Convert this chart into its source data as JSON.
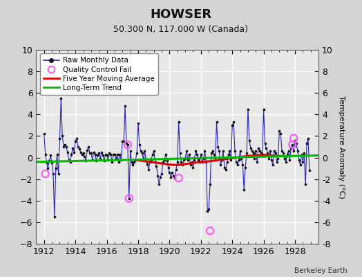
{
  "title": "HOWSER",
  "subtitle": "50.300 N, 117.000 W (Canada)",
  "ylabel": "Temperature Anomaly (°C)",
  "credit": "Berkeley Earth",
  "xlim": [
    1911.5,
    1929.5
  ],
  "ylim": [
    -8,
    10
  ],
  "yticks": [
    -8,
    -6,
    -4,
    -2,
    0,
    2,
    4,
    6,
    8,
    10
  ],
  "xticks": [
    1912,
    1914,
    1916,
    1918,
    1920,
    1922,
    1924,
    1926,
    1928
  ],
  "bg_color": "#e8e8e8",
  "raw_x": [
    1912.0,
    1912.083,
    1912.167,
    1912.25,
    1912.333,
    1912.417,
    1912.5,
    1912.583,
    1912.667,
    1912.75,
    1912.833,
    1912.917,
    1913.0,
    1913.083,
    1913.167,
    1913.25,
    1913.333,
    1913.417,
    1913.5,
    1913.583,
    1913.667,
    1913.75,
    1913.833,
    1913.917,
    1914.0,
    1914.083,
    1914.167,
    1914.25,
    1914.333,
    1914.417,
    1914.5,
    1914.583,
    1914.667,
    1914.75,
    1914.833,
    1914.917,
    1915.0,
    1915.083,
    1915.167,
    1915.25,
    1915.333,
    1915.417,
    1915.5,
    1915.583,
    1915.667,
    1915.75,
    1915.833,
    1915.917,
    1916.0,
    1916.083,
    1916.167,
    1916.25,
    1916.333,
    1916.417,
    1916.5,
    1916.583,
    1916.667,
    1916.75,
    1916.833,
    1916.917,
    1917.0,
    1917.083,
    1917.167,
    1917.25,
    1917.333,
    1917.417,
    1917.5,
    1917.583,
    1917.667,
    1917.75,
    1917.833,
    1917.917,
    1918.0,
    1918.083,
    1918.167,
    1918.25,
    1918.333,
    1918.417,
    1918.5,
    1918.583,
    1918.667,
    1918.75,
    1918.833,
    1918.917,
    1919.0,
    1919.083,
    1919.167,
    1919.25,
    1919.333,
    1919.417,
    1919.5,
    1919.583,
    1919.667,
    1919.75,
    1919.833,
    1919.917,
    1920.0,
    1920.083,
    1920.167,
    1920.25,
    1920.333,
    1920.417,
    1920.5,
    1920.583,
    1920.667,
    1920.75,
    1920.833,
    1920.917,
    1921.0,
    1921.083,
    1921.167,
    1921.25,
    1921.333,
    1921.417,
    1921.5,
    1921.583,
    1921.667,
    1921.75,
    1921.833,
    1921.917,
    1922.0,
    1922.083,
    1922.167,
    1922.25,
    1922.333,
    1922.417,
    1922.5,
    1922.583,
    1922.667,
    1922.75,
    1922.833,
    1922.917,
    1923.0,
    1923.083,
    1923.167,
    1923.25,
    1923.333,
    1923.417,
    1923.5,
    1923.583,
    1923.667,
    1923.75,
    1923.833,
    1923.917,
    1924.0,
    1924.083,
    1924.167,
    1924.25,
    1924.333,
    1924.417,
    1924.5,
    1924.583,
    1924.667,
    1924.75,
    1924.833,
    1924.917,
    1925.0,
    1925.083,
    1925.167,
    1925.25,
    1925.333,
    1925.417,
    1925.5,
    1925.583,
    1925.667,
    1925.75,
    1925.833,
    1925.917,
    1926.0,
    1926.083,
    1926.167,
    1926.25,
    1926.333,
    1926.417,
    1926.5,
    1926.583,
    1926.667,
    1926.75,
    1926.833,
    1926.917,
    1927.0,
    1927.083,
    1927.167,
    1927.25,
    1927.333,
    1927.417,
    1927.5,
    1927.583,
    1927.667,
    1927.75,
    1927.833,
    1927.917,
    1928.0,
    1928.083,
    1928.167,
    1928.25,
    1928.333,
    1928.417,
    1928.5,
    1928.583,
    1928.667,
    1928.75,
    1928.833,
    1928.917
  ],
  "raw_y": [
    2.2,
    0.3,
    -0.5,
    -1.0,
    -0.3,
    0.2,
    -0.5,
    -1.5,
    -5.5,
    -1.0,
    0.3,
    -1.5,
    1.8,
    5.5,
    2.0,
    1.0,
    1.2,
    1.0,
    0.5,
    -0.2,
    -0.4,
    0.3,
    0.9,
    0.5,
    1.5,
    1.8,
    1.0,
    0.8,
    0.5,
    0.3,
    0.4,
    0.1,
    -0.3,
    0.7,
    1.0,
    0.4,
    0.4,
    -0.2,
    0.5,
    0.3,
    -0.3,
    0.2,
    0.4,
    -0.1,
    0.5,
    0.2,
    -0.3,
    0.3,
    0.2,
    -0.2,
    0.4,
    0.3,
    -0.4,
    0.3,
    0.3,
    -0.1,
    0.3,
    -0.4,
    0.3,
    -0.2,
    1.5,
    1.5,
    4.8,
    1.3,
    1.2,
    -3.8,
    0.6,
    -0.4,
    -0.7,
    -0.4,
    -0.2,
    0.4,
    3.2,
    1.2,
    0.6,
    0.4,
    -0.1,
    0.6,
    -0.2,
    -0.6,
    -1.1,
    -0.4,
    -0.2,
    0.3,
    0.6,
    -0.4,
    -0.8,
    -1.7,
    -2.5,
    -1.8,
    -1.5,
    -0.4,
    -0.2,
    0.3,
    -0.3,
    -0.9,
    -1.4,
    -1.8,
    -1.4,
    -1.7,
    -1.9,
    -1.1,
    -0.4,
    3.3,
    0.4,
    -0.4,
    -0.7,
    -0.2,
    -0.1,
    0.6,
    -0.2,
    0.3,
    -0.7,
    -0.4,
    -0.9,
    -0.2,
    0.6,
    0.3,
    -0.2,
    -0.4,
    0.3,
    -0.4,
    -0.1,
    0.6,
    -0.4,
    -5.0,
    -4.8,
    -2.5,
    0.4,
    0.6,
    0.3,
    -0.2,
    3.3,
    1.0,
    0.6,
    -0.7,
    -0.2,
    0.6,
    -0.9,
    -1.1,
    -0.4,
    0.3,
    0.6,
    -0.2,
    3.0,
    3.3,
    0.6,
    -0.4,
    -0.7,
    -0.2,
    0.6,
    -0.1,
    -0.7,
    -3.0,
    -0.9,
    0.4,
    4.5,
    1.6,
    0.9,
    0.6,
    0.4,
    -0.1,
    0.6,
    -0.4,
    0.9,
    0.6,
    0.4,
    0.3,
    4.5,
    1.3,
    0.9,
    0.4,
    -0.1,
    0.6,
    -0.2,
    -0.7,
    0.6,
    0.4,
    -0.4,
    -0.1,
    2.5,
    2.2,
    0.6,
    0.4,
    -0.1,
    -0.4,
    0.3,
    0.6,
    -0.2,
    0.9,
    1.2,
    0.6,
    1.6,
    1.3,
    0.6,
    -0.2,
    -0.7,
    0.3,
    -0.4,
    0.4,
    -2.5,
    1.3,
    1.8,
    -1.2
  ],
  "qc_fail_x": [
    1912.083,
    1917.333,
    1917.417,
    1920.583,
    1922.583,
    1927.833,
    1927.917
  ],
  "qc_fail_y": [
    -1.5,
    1.2,
    -3.8,
    -1.9,
    -6.8,
    1.2,
    1.8
  ],
  "moving_avg_x": [
    1918.0,
    1918.5,
    1919.0,
    1919.5,
    1920.0,
    1920.5,
    1921.0,
    1921.5,
    1922.0,
    1922.5,
    1923.0,
    1923.5,
    1924.0,
    1924.5,
    1925.0,
    1925.5,
    1926.0,
    1926.5,
    1927.0,
    1927.5
  ],
  "moving_avg_y": [
    -0.25,
    -0.35,
    -0.45,
    -0.55,
    -0.65,
    -0.7,
    -0.6,
    -0.5,
    -0.4,
    -0.35,
    -0.25,
    -0.15,
    -0.05,
    0.05,
    0.15,
    0.2,
    0.25,
    0.2,
    0.15,
    0.1
  ],
  "trend_x": [
    1911.5,
    1929.5
  ],
  "trend_y": [
    -0.4,
    0.2
  ],
  "raw_color": "#2222bb",
  "dot_color": "#111111",
  "qc_color": "#ff55ff",
  "ma_color": "#dd0000",
  "trend_color": "#00bb00",
  "fig_bg": "#d4d4d4",
  "plot_bg": "#e8e8e8"
}
